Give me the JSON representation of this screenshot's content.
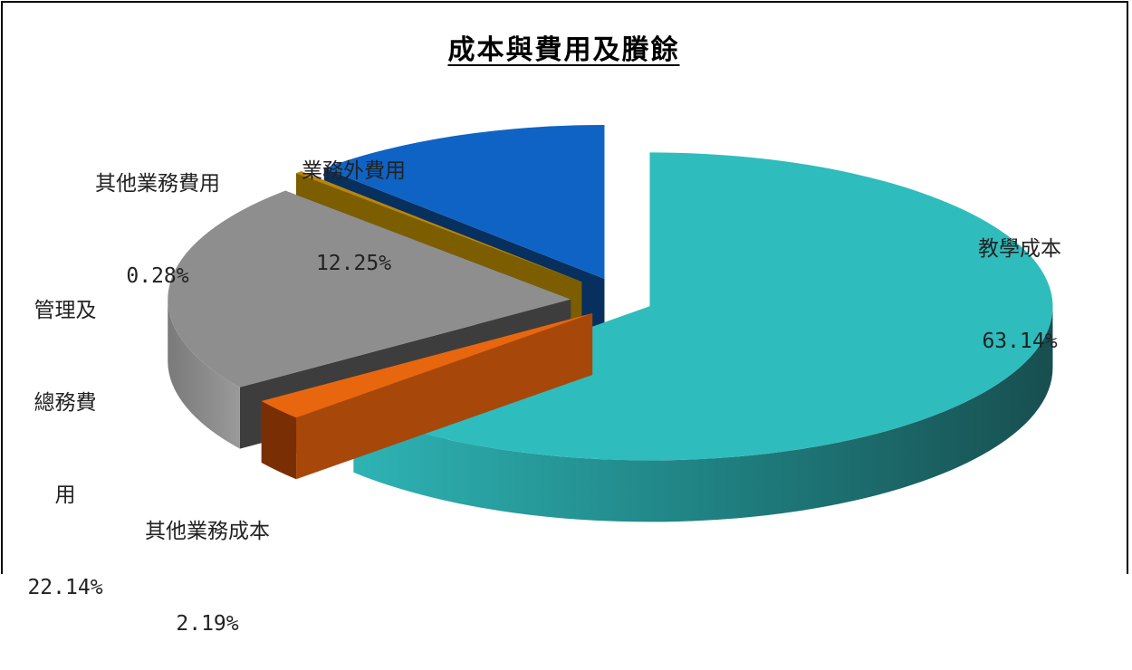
{
  "chart_data": {
    "type": "pie",
    "title": "成本與費用及賸餘",
    "slices": [
      {
        "label": "教學成本",
        "value": 63.14,
        "pct_text": "63.14%",
        "color": "#2FBCBD"
      },
      {
        "label": "其他業務成本",
        "value": 2.19,
        "pct_text": "2.19%",
        "color": "#E8670E"
      },
      {
        "label": "管理及總務費用",
        "label_lines": [
          "管理及",
          "總務費",
          "用"
        ],
        "value": 22.14,
        "pct_text": "22.14%",
        "color": "#8E8E8E"
      },
      {
        "label": "其他業務費用",
        "value": 0.28,
        "pct_text": "0.28%",
        "color": "#B8860B"
      },
      {
        "label": "業務外費用",
        "value": 12.25,
        "pct_text": "12.25%",
        "color": "#0F63C4"
      }
    ]
  }
}
